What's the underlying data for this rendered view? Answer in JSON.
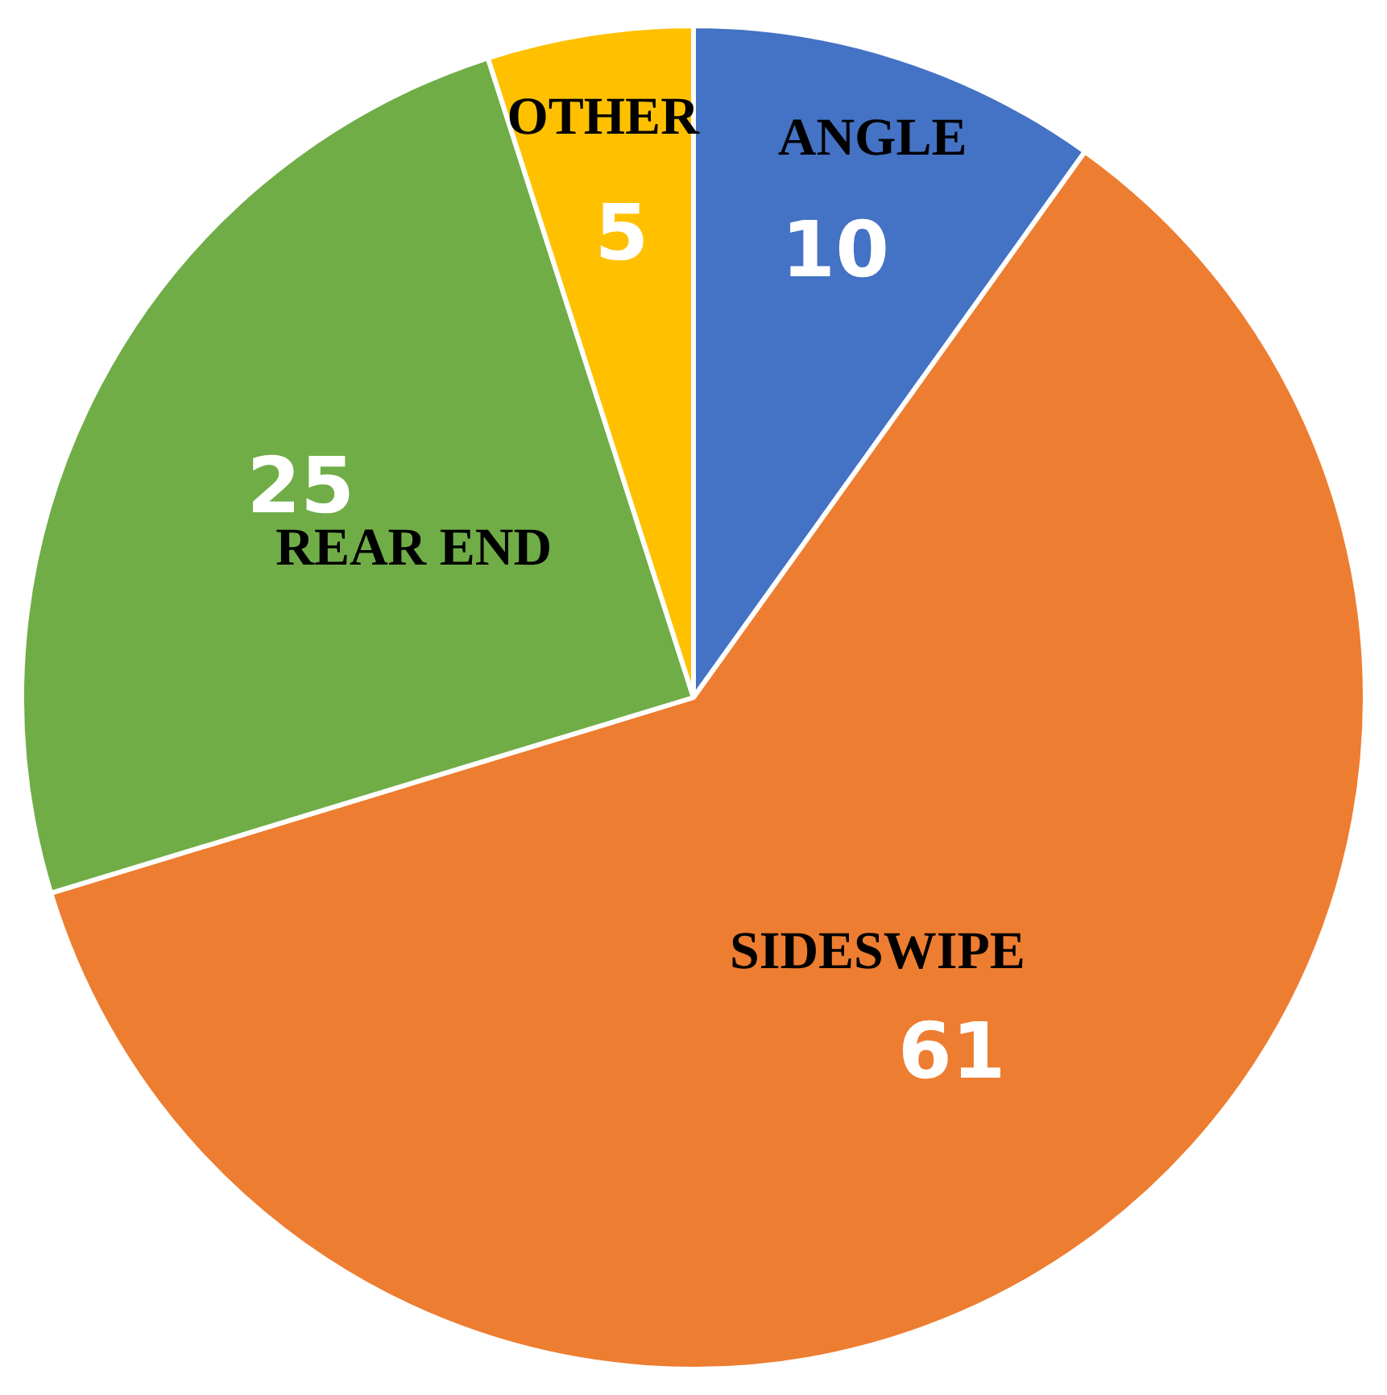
{
  "chart_data": {
    "type": "pie",
    "categories": [
      "ANGLE",
      "SIDESWIPE",
      "REAR END",
      "OTHER"
    ],
    "values": [
      10,
      61,
      25,
      5
    ],
    "colors": [
      "#4472c4",
      "#ed7d31",
      "#70ad47",
      "#ffc000"
    ],
    "data_labels": true,
    "legend": false
  }
}
